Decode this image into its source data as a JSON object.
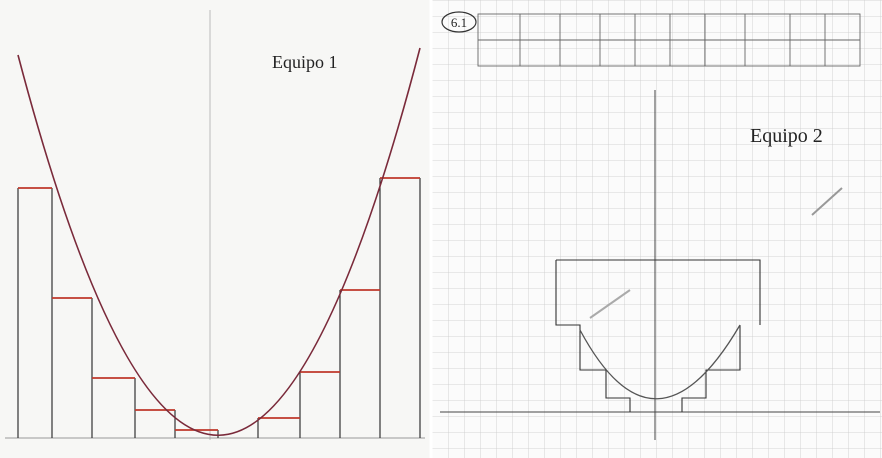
{
  "panels": [
    {
      "label": "Equipo 1"
    },
    {
      "label": "Equipo 2",
      "tag": "6.1"
    }
  ]
}
